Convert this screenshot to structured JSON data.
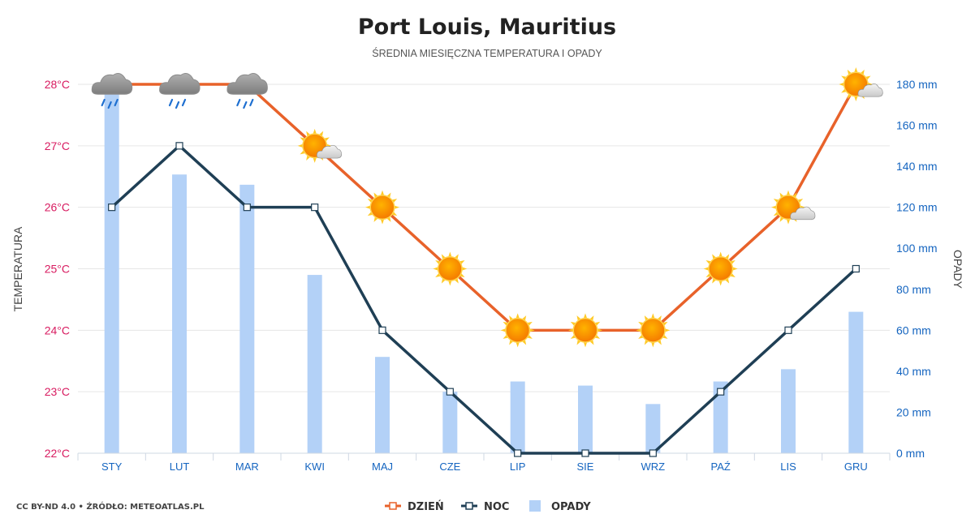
{
  "chart_data": {
    "type": "bar+line",
    "title": "Port Louis, Mauritius",
    "subtitle": "ŚREDNIA MIESIĘCZNA TEMPERATURA I OPADY",
    "categories": [
      "STY",
      "LUT",
      "MAR",
      "KWI",
      "MAJ",
      "CZE",
      "LIP",
      "SIE",
      "WRZ",
      "PAŹ",
      "LIS",
      "GRU"
    ],
    "y_left": {
      "label": "TEMPERATURA",
      "range": [
        22,
        28
      ],
      "ticks": [
        "22°C",
        "23°C",
        "24°C",
        "25°C",
        "26°C",
        "27°C",
        "28°C"
      ],
      "color": "#d81b60"
    },
    "y_right": {
      "label": "OPADY",
      "range": [
        0,
        180
      ],
      "ticks": [
        "0 mm",
        "20 mm",
        "40 mm",
        "60 mm",
        "80 mm",
        "100 mm",
        "120 mm",
        "140 mm",
        "160 mm",
        "180 mm"
      ],
      "color": "#1565c0"
    },
    "series": [
      {
        "name": "DZIEŃ",
        "type": "line",
        "axis": "left",
        "color": "#e8622a",
        "values": [
          28,
          28,
          28,
          27,
          26,
          25,
          24,
          24,
          24,
          25,
          26,
          28
        ]
      },
      {
        "name": "NOC",
        "type": "line",
        "axis": "left",
        "color": "#1f3f55",
        "values": [
          26,
          27,
          26,
          26,
          24,
          23,
          22,
          22,
          22,
          23,
          24,
          25
        ]
      },
      {
        "name": "OPADY",
        "type": "bar",
        "axis": "right",
        "color": "#b3d1f7",
        "values": [
          176,
          136,
          131,
          87,
          47,
          30,
          35,
          33,
          24,
          35,
          41,
          69
        ]
      }
    ],
    "weather_icons": [
      "rain-cloud-icon",
      "rain-cloud-icon",
      "rain-cloud-icon",
      "sun-cloud-icon",
      "sun-icon",
      "sun-icon",
      "sun-icon",
      "sun-icon",
      "sun-icon",
      "sun-icon",
      "sun-cloud-icon",
      "sun-cloud-icon"
    ],
    "grid": true,
    "legend_position": "bottom-center"
  },
  "credit": "CC BY-ND 4.0 • ŹRÓDŁO: METEOATLAS.PL"
}
